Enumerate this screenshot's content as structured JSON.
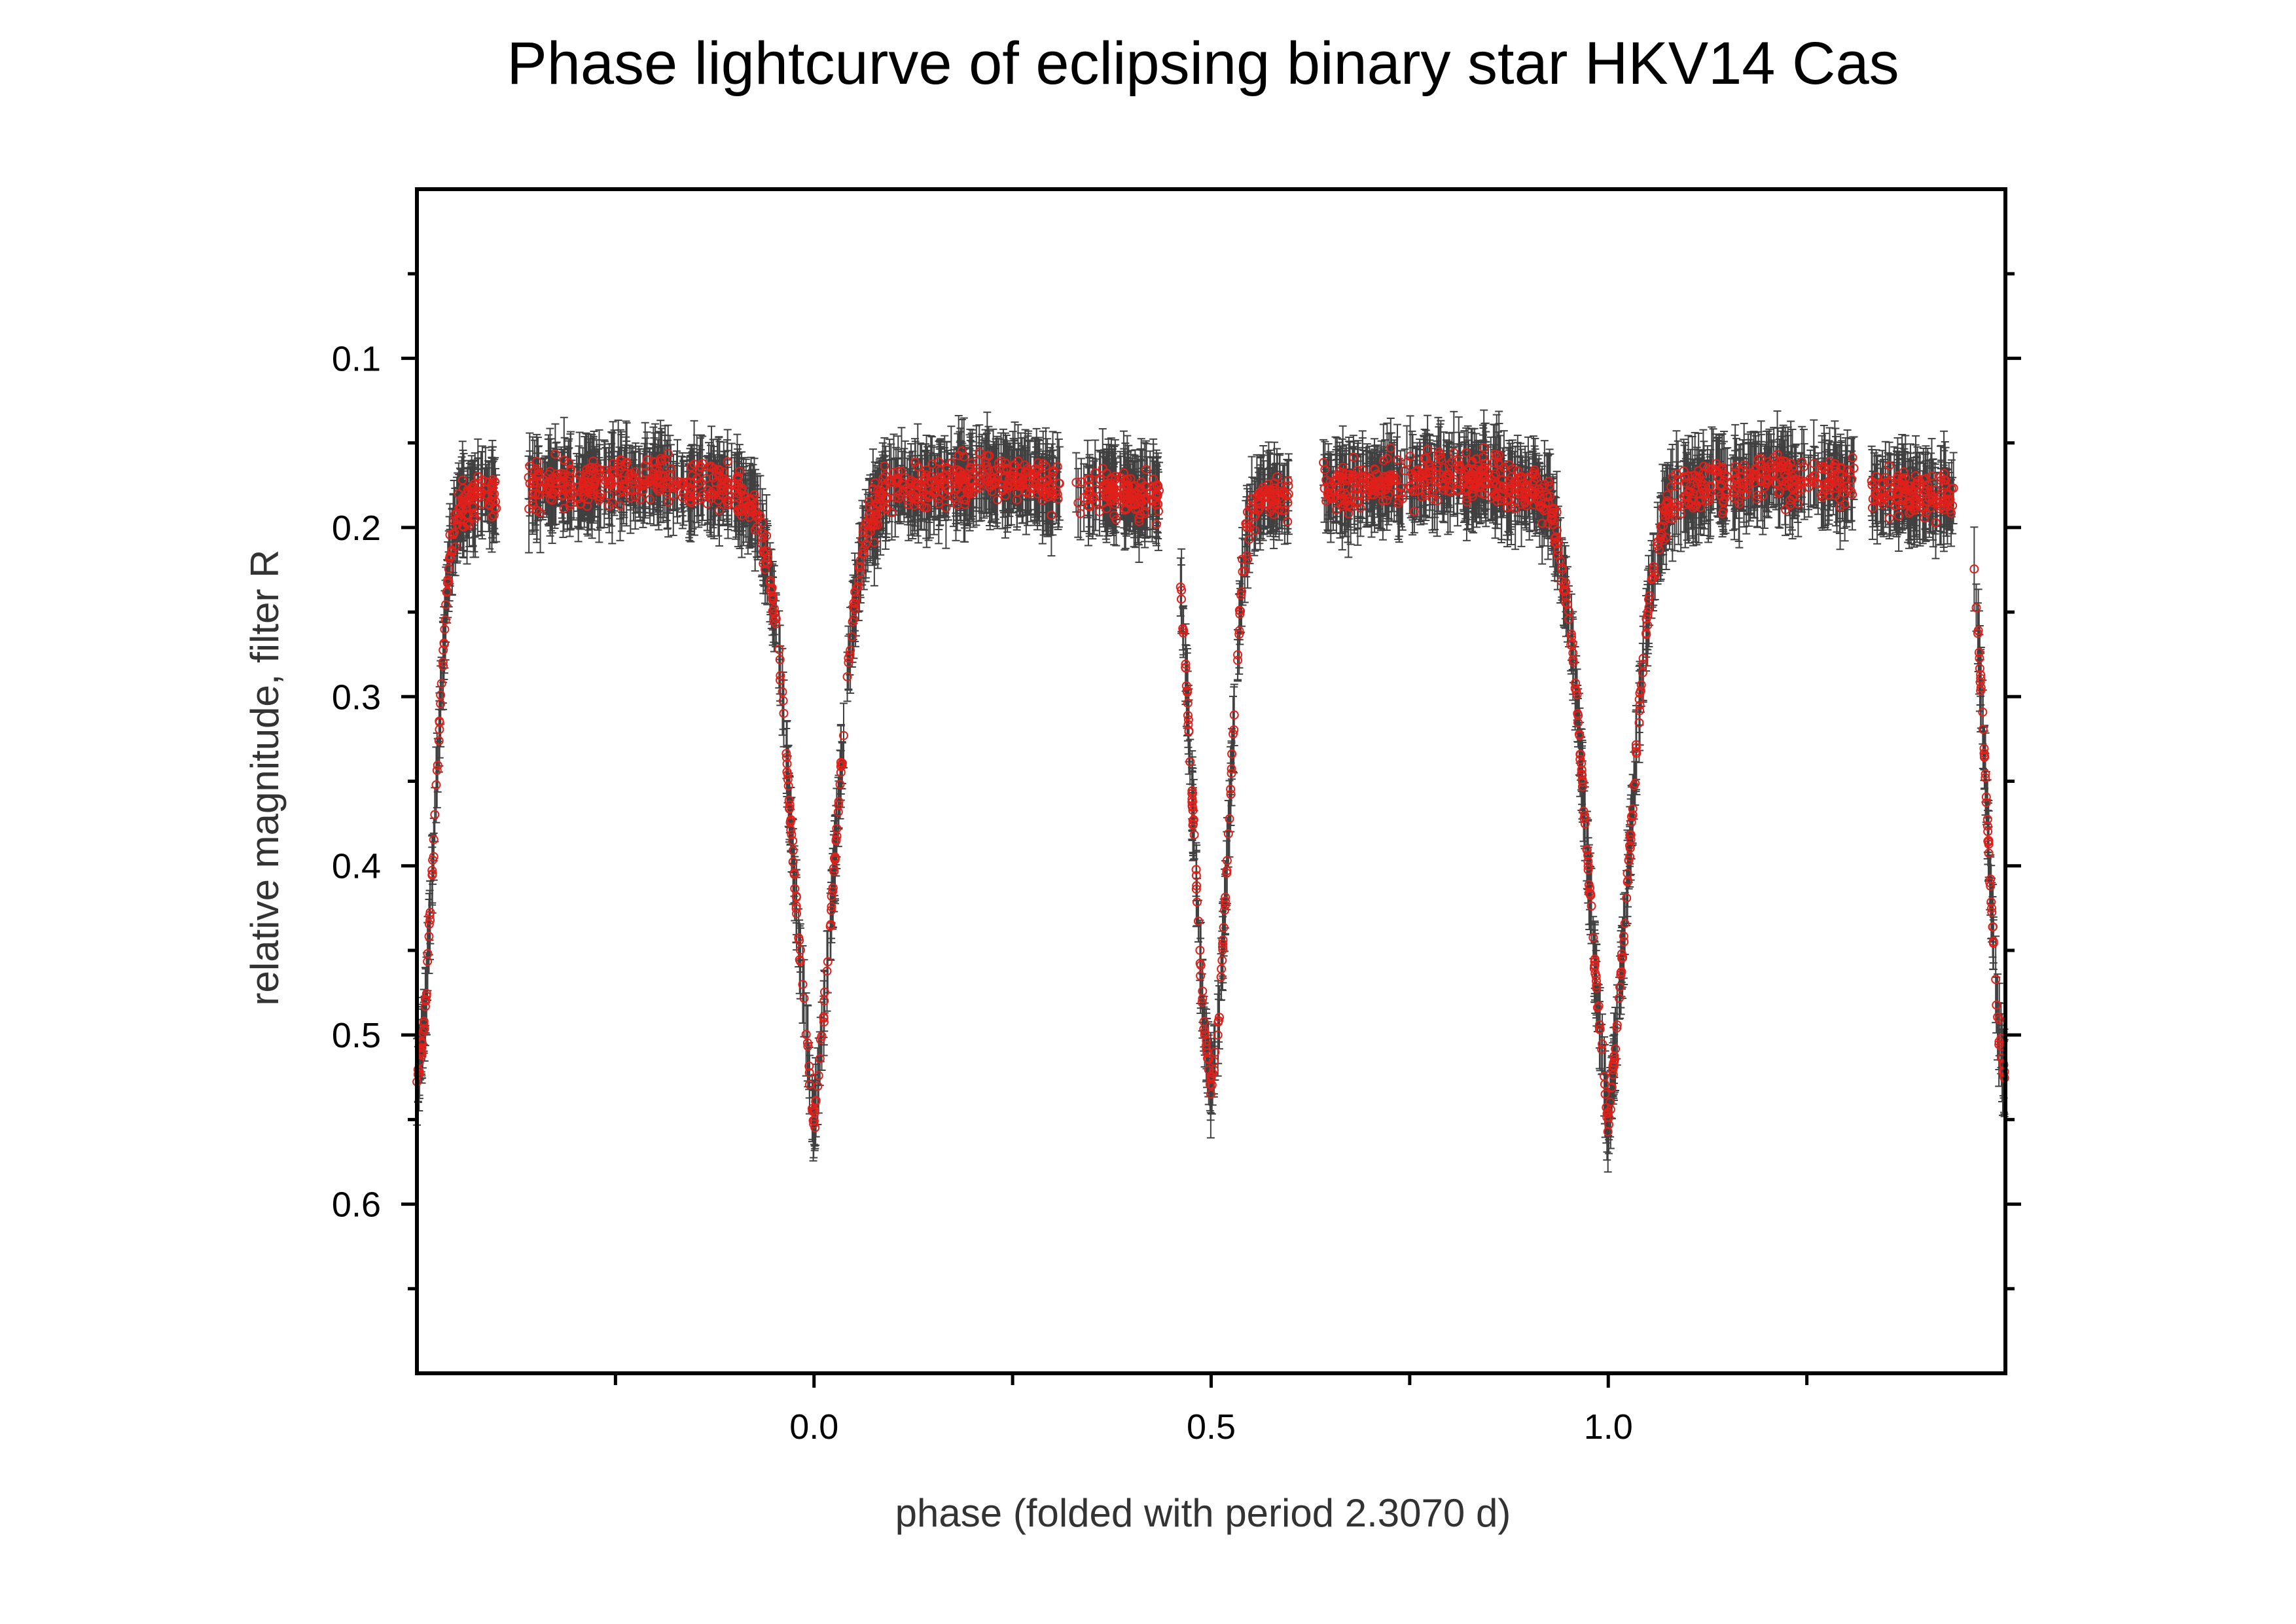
{
  "chart_data": {
    "type": "scatter",
    "title": "Phase lightcurve of eclipsing binary star HKV14 Cas",
    "xlabel": "phase  (folded with period 2.3070 d)",
    "ylabel": "relative magnitude, filter R",
    "xlim": [
      -0.5,
      1.5
    ],
    "ylim": [
      0.0,
      0.7
    ],
    "y_inverted": true,
    "x_ticks": [
      0.0,
      0.5,
      1.0
    ],
    "x_tick_labels": [
      "0.0",
      "0.5",
      "1.0"
    ],
    "x_minor_ticks": [
      -0.25,
      0.25,
      0.75,
      1.25
    ],
    "y_ticks": [
      0.1,
      0.2,
      0.3,
      0.4,
      0.5,
      0.6
    ],
    "y_tick_labels": [
      "0.1",
      "0.2",
      "0.3",
      "0.4",
      "0.5",
      "0.6"
    ],
    "y_minor_ticks": [
      0.05,
      0.15,
      0.25,
      0.35,
      0.45,
      0.55,
      0.65
    ],
    "grid": false,
    "legend": "none",
    "marker": "open circle",
    "marker_color": "#e0201a",
    "errorbar_color": "#404040",
    "series": [
      {
        "errorbars": true,
        "profile": {
          "x": [
            0.0,
            0.01,
            0.02,
            0.03,
            0.04,
            0.05,
            0.06,
            0.07,
            0.08,
            0.09,
            0.1,
            0.15,
            0.2,
            0.25,
            0.3,
            0.35,
            0.4,
            0.45,
            0.46,
            0.47,
            0.48,
            0.49,
            0.5,
            0.51,
            0.52,
            0.53,
            0.54,
            0.55,
            0.56,
            0.6,
            0.7,
            0.8,
            0.85,
            0.9,
            0.91,
            0.92,
            0.93,
            0.94,
            0.95,
            0.96,
            0.97,
            0.98,
            0.99,
            1.0
          ],
          "y": [
            0.555,
            0.5,
            0.44,
            0.37,
            0.3,
            0.25,
            0.215,
            0.195,
            0.185,
            0.18,
            0.178,
            0.175,
            0.17,
            0.172,
            0.175,
            0.178,
            0.18,
            0.182,
            0.22,
            0.3,
            0.4,
            0.49,
            0.53,
            0.49,
            0.4,
            0.3,
            0.22,
            0.19,
            0.185,
            0.18,
            0.175,
            0.17,
            0.172,
            0.178,
            0.18,
            0.185,
            0.195,
            0.215,
            0.25,
            0.3,
            0.37,
            0.44,
            0.5,
            0.555
          ]
        },
        "data_gaps": [
          [
            0.31,
            0.33
          ],
          [
            0.435,
            0.46
          ],
          [
            0.6,
            0.64
          ]
        ],
        "typical_error": 0.02
      }
    ]
  }
}
